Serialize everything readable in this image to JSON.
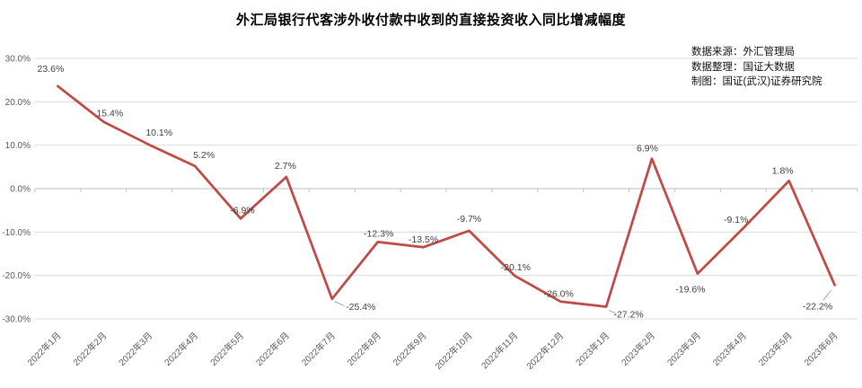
{
  "chart_data": {
    "type": "line",
    "title": "外汇局银行代客涉外收付款中收到的直接投资收入同比增减幅度",
    "categories": [
      "2022年1月",
      "2022年2月",
      "2022年3月",
      "2022年4月",
      "2022年5月",
      "2022年6月",
      "2022年7月",
      "2022年8月",
      "2022年9月",
      "2022年10月",
      "2022年11月",
      "2022年12月",
      "2023年1月",
      "2023年2月",
      "2023年3月",
      "2023年4月",
      "2023年5月",
      "2023年6月"
    ],
    "values": [
      23.6,
      15.4,
      10.1,
      5.2,
      -6.9,
      2.7,
      -25.4,
      -12.3,
      -13.5,
      -9.7,
      -20.1,
      -26.0,
      -27.2,
      6.9,
      -19.6,
      -9.1,
      1.8,
      -22.2
    ],
    "point_labels": [
      "23.6%",
      "15.4%",
      "10.1%",
      "5.2%",
      "-6.9%",
      "2.7%",
      "-25.4%",
      "-12.3%",
      "-13.5%",
      "-9.7%",
      "-20.1%",
      "-26.0%",
      "-27.2%",
      "6.9%",
      "-19.6%",
      "-9.1%",
      "1.8%",
      "-22.2%"
    ],
    "y_ticks": [
      "30.0%",
      "20.0%",
      "10.0%",
      "0.0%",
      "-10.0%",
      "-20.0%",
      "-30.0%"
    ],
    "y_tick_values": [
      30,
      20,
      10,
      0,
      -10,
      -20,
      -30
    ],
    "ylim": [
      -30,
      30
    ],
    "xlabel": "",
    "ylabel": "",
    "grid": true,
    "legend": "none",
    "line_color": "#BE4B48",
    "grid_color": "#D9D9D9",
    "axis_color": "#BFBFBF",
    "data_label_color": "#404040",
    "tick_label_color": "#595959"
  },
  "annotations": {
    "data_source": "数据来源：外汇管理局",
    "data_collation": "数据整理：国证大数据",
    "chart_credit": "制图：国证(武汉)证券研究院"
  }
}
